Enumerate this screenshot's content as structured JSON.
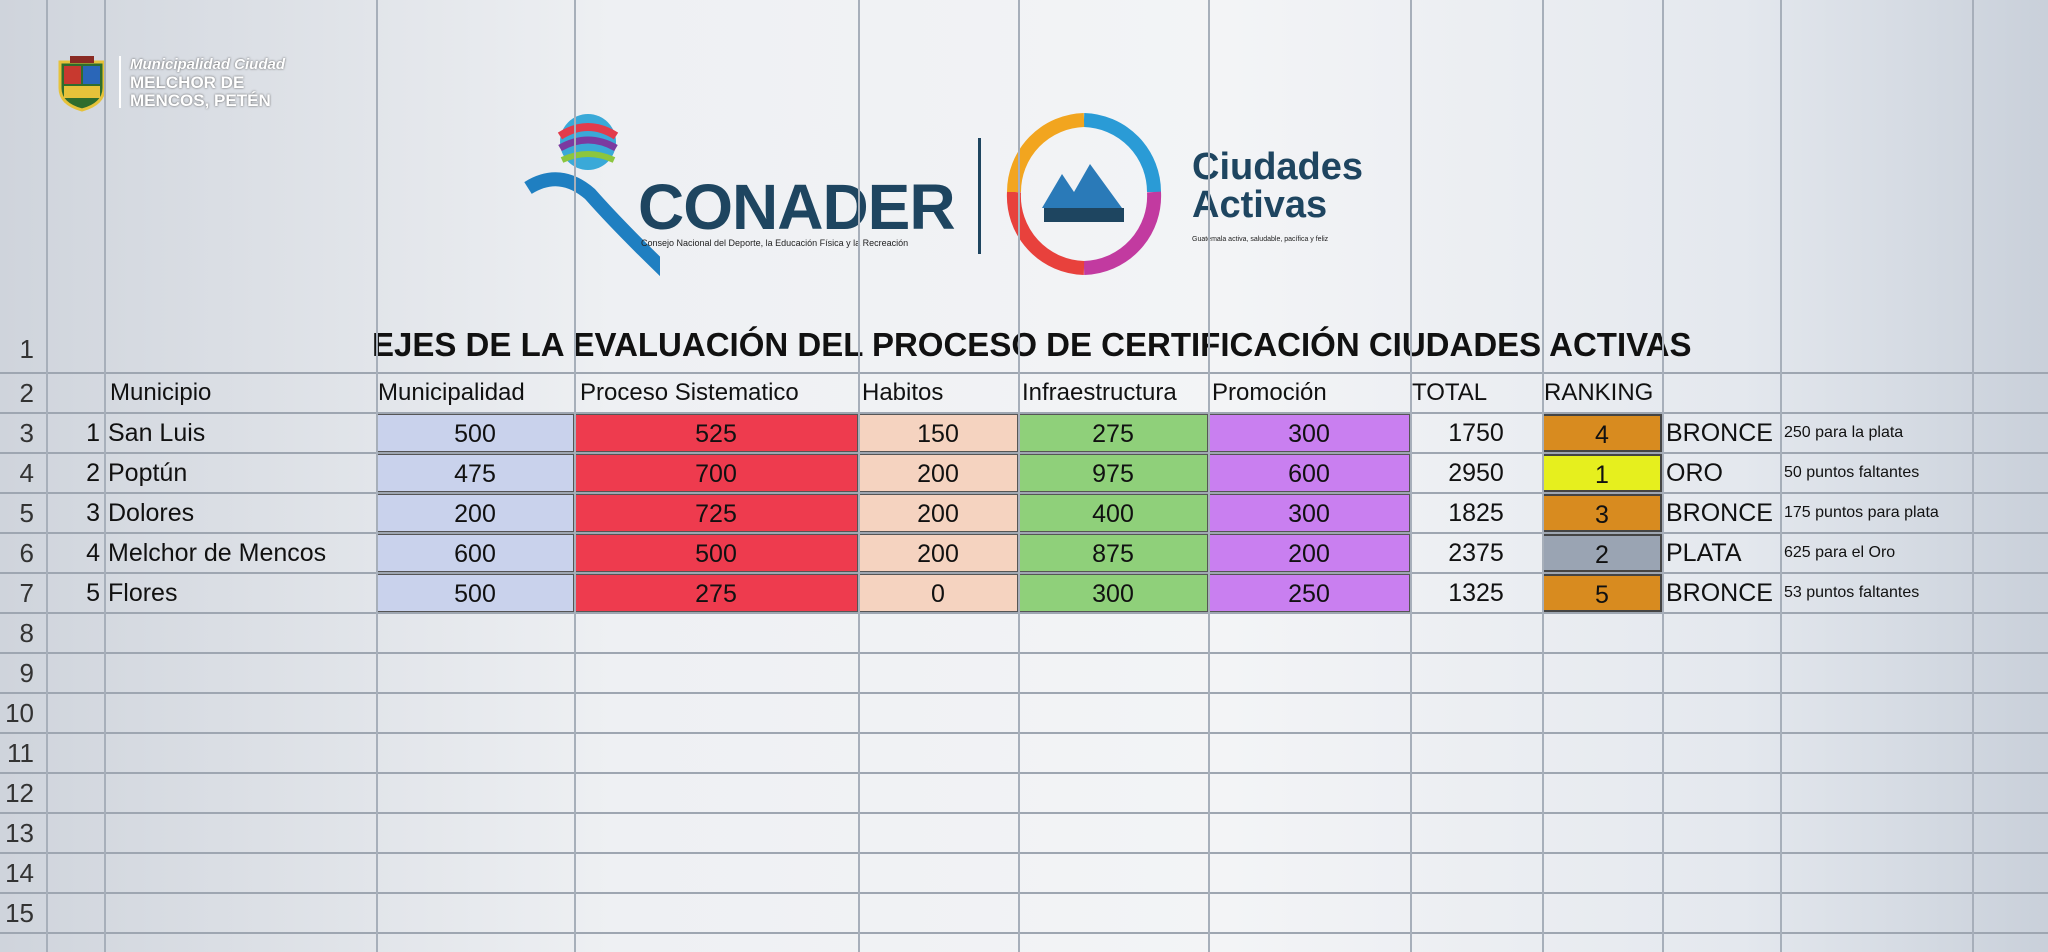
{
  "branding": {
    "municipality_line1": "Municipalidad Ciudad",
    "municipality_line2": "MELCHOR DE",
    "municipality_line3": "MENCOS, PETÉN",
    "conader_name": "CONADER",
    "conader_tagline": "Consejo Nacional del Deporte, la Educación Física y la Recreación",
    "ciudades_line1": "Ciudades",
    "ciudades_line2": "Activas",
    "ciudades_tagline": "Guatemala activa, saludable, pacífica y feliz"
  },
  "sheet": {
    "title": "EJES DE LA EVALUACIÓN DEL PROCESO DE CERTIFICACIÓN CIUDADES ACTIVAS",
    "row_numbers": [
      "1",
      "2",
      "3",
      "4",
      "5",
      "6",
      "7",
      "8",
      "9",
      "10",
      "11",
      "12",
      "13",
      "14",
      "15"
    ],
    "headers": {
      "municipio": "Municipio",
      "municipalidad": "Municipalidad",
      "proceso": "Proceso Sistematico",
      "habitos": "Habitos",
      "infraestructura": "Infraestructura",
      "promocion": "Promoción",
      "total": "TOTAL",
      "ranking": "RANKING"
    },
    "rows": [
      {
        "idx": "1",
        "municipio": "San Luis",
        "municipalidad": "500",
        "proceso": "525",
        "habitos": "150",
        "infraestructura": "275",
        "promocion": "300",
        "total": "1750",
        "ranking": "4",
        "medal": "BRONCE",
        "note": "250 para la plata",
        "rank_color": "#d88b1f"
      },
      {
        "idx": "2",
        "municipio": "Poptún",
        "municipalidad": "475",
        "proceso": "700",
        "habitos": "200",
        "infraestructura": "975",
        "promocion": "600",
        "total": "2950",
        "ranking": "1",
        "medal": "ORO",
        "note": "50 puntos faltantes",
        "rank_color": "#e6ef1e"
      },
      {
        "idx": "3",
        "municipio": "Dolores",
        "municipalidad": "200",
        "proceso": "725",
        "habitos": "200",
        "infraestructura": "400",
        "promocion": "300",
        "total": "1825",
        "ranking": "3",
        "medal": "BRONCE",
        "note": "175 puntos para plata",
        "rank_color": "#d88b1f"
      },
      {
        "idx": "4",
        "municipio": "Melchor de Mencos",
        "municipalidad": "600",
        "proceso": "500",
        "habitos": "200",
        "infraestructura": "875",
        "promocion": "200",
        "total": "2375",
        "ranking": "2",
        "medal": "PLATA",
        "note": "625 para el Oro",
        "rank_color": "#9aa4b3"
      },
      {
        "idx": "5",
        "municipio": "Flores",
        "municipalidad": "500",
        "proceso": "275",
        "habitos": "0",
        "infraestructura": "300",
        "promocion": "250",
        "total": "1325",
        "ranking": "5",
        "medal": "BRONCE",
        "note": "53 puntos faltantes",
        "rank_color": "#d88b1f"
      }
    ],
    "colors": {
      "municipalidad": "#c9d2ec",
      "proceso": "#ee3b4e",
      "habitos": "#f5d3c0",
      "infraestructura": "#8fd07a",
      "promocion": "#c97ff0"
    }
  }
}
